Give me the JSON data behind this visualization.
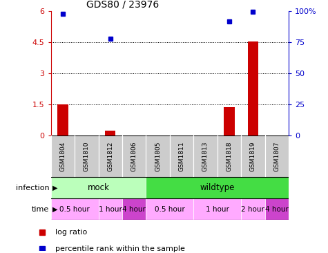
{
  "title": "GDS80 / 23976",
  "samples": [
    "GSM1804",
    "GSM1810",
    "GSM1812",
    "GSM1806",
    "GSM1805",
    "GSM1811",
    "GSM1813",
    "GSM1818",
    "GSM1819",
    "GSM1807"
  ],
  "log_ratio": [
    1.5,
    0.0,
    0.22,
    0.0,
    0.0,
    0.0,
    0.0,
    1.35,
    4.55,
    0.0
  ],
  "percentile_raw": [
    98.0,
    null,
    78.0,
    null,
    null,
    null,
    null,
    92.0,
    99.5,
    null
  ],
  "ylim_left": [
    0,
    6
  ],
  "ylim_right": [
    0,
    100
  ],
  "yticks_left": [
    0,
    1.5,
    3.0,
    4.5,
    6.0
  ],
  "ytick_labels_left": [
    "0",
    "1.5",
    "3",
    "4.5",
    "6"
  ],
  "yticks_right": [
    0,
    25,
    50,
    75,
    100
  ],
  "ytick_labels_right": [
    "0",
    "25",
    "50",
    "75",
    "100%"
  ],
  "bar_color": "#cc0000",
  "point_color": "#0000cc",
  "dotted_lines": [
    1.5,
    3.0,
    4.5
  ],
  "infection_groups": [
    {
      "label": "mock",
      "start": 0,
      "end": 4,
      "color": "#bbffbb"
    },
    {
      "label": "wildtype",
      "start": 4,
      "end": 10,
      "color": "#44dd44"
    }
  ],
  "time_groups": [
    {
      "label": "0.5 hour",
      "start": 0,
      "end": 2,
      "color": "#ffaaff"
    },
    {
      "label": "1 hour",
      "start": 2,
      "end": 3,
      "color": "#ffaaff"
    },
    {
      "label": "4 hour",
      "start": 3,
      "end": 4,
      "color": "#cc44cc"
    },
    {
      "label": "0.5 hour",
      "start": 4,
      "end": 6,
      "color": "#ffaaff"
    },
    {
      "label": "1 hour",
      "start": 6,
      "end": 8,
      "color": "#ffaaff"
    },
    {
      "label": "2 hour",
      "start": 8,
      "end": 9,
      "color": "#ffaaff"
    },
    {
      "label": "4 hour",
      "start": 9,
      "end": 10,
      "color": "#cc44cc"
    }
  ],
  "legend_items": [
    {
      "label": "log ratio",
      "color": "#cc0000"
    },
    {
      "label": "percentile rank within the sample",
      "color": "#0000cc"
    }
  ],
  "sample_box_color": "#cccccc",
  "infection_label": "infection",
  "time_label": "time"
}
